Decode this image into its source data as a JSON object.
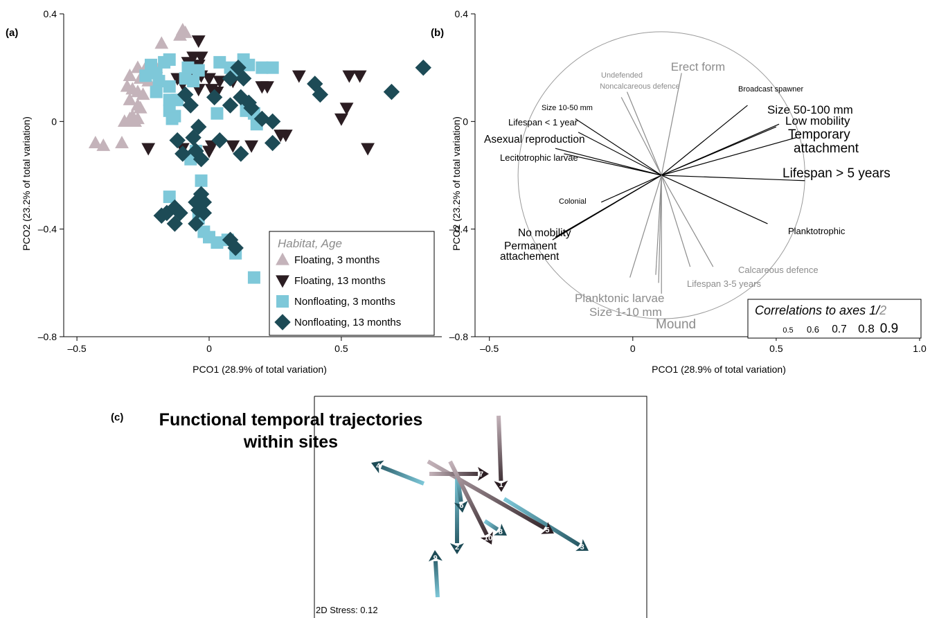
{
  "chart_data": [
    {
      "panel": "(a)",
      "type": "scatter",
      "xlabel": "PCO1 (28.9% of total variation)",
      "ylabel": "PCO2 (23.2% of total variation)",
      "xlim": [
        -0.55,
        0.88
      ],
      "ylim": [
        -0.8,
        0.4
      ],
      "xticks": [
        -0.5,
        0,
        0.5
      ],
      "xtick_labels": [
        "–0.5",
        "0",
        "0.5"
      ],
      "yticks": [
        0.4,
        0,
        -0.4,
        -0.8
      ],
      "ytick_labels": [
        "0.4",
        "0",
        "–0.4",
        "–0.8"
      ],
      "legend": {
        "title": "Habitat, Age",
        "position": "bottom-right",
        "entries": [
          "Floating, 3 months",
          "Floating, 13 months",
          "Nonfloating, 3 months",
          "Nonfloating, 13 months"
        ]
      },
      "series": [
        {
          "name": "Floating, 3 months",
          "marker": "triangle-up",
          "color": "#c4b3ba",
          "points": [
            [
              -0.1,
              0.34
            ],
            [
              -0.09,
              0.33
            ],
            [
              -0.11,
              0.32
            ],
            [
              -0.18,
              0.29
            ],
            [
              -0.27,
              0.2
            ],
            [
              -0.24,
              0.2
            ],
            [
              -0.2,
              0.2
            ],
            [
              -0.3,
              0.17
            ],
            [
              -0.26,
              0.16
            ],
            [
              -0.23,
              0.15
            ],
            [
              -0.31,
              0.13
            ],
            [
              -0.29,
              0.12
            ],
            [
              -0.27,
              0.11
            ],
            [
              -0.25,
              0.1
            ],
            [
              -0.3,
              0.08
            ],
            [
              -0.27,
              0.06
            ],
            [
              -0.26,
              0.05
            ],
            [
              -0.29,
              0.02
            ],
            [
              -0.27,
              0.01
            ],
            [
              -0.3,
              0.01
            ],
            [
              -0.32,
              0.0
            ],
            [
              -0.28,
              0.0
            ],
            [
              -0.43,
              -0.08
            ],
            [
              -0.4,
              -0.09
            ],
            [
              -0.33,
              -0.08
            ]
          ]
        },
        {
          "name": "Floating, 13 months",
          "marker": "triangle-down",
          "color": "#2b1d22",
          "points": [
            [
              -0.04,
              0.3
            ],
            [
              -0.06,
              0.24
            ],
            [
              -0.03,
              0.24
            ],
            [
              -0.08,
              0.22
            ],
            [
              -0.04,
              0.21
            ],
            [
              -0.12,
              0.16
            ],
            [
              -0.06,
              0.17
            ],
            [
              -0.1,
              0.14
            ],
            [
              -0.03,
              0.17
            ],
            [
              0.0,
              0.16
            ],
            [
              0.04,
              0.15
            ],
            [
              -0.04,
              0.12
            ],
            [
              0.01,
              0.12
            ],
            [
              0.03,
              0.11
            ],
            [
              0.09,
              0.15
            ],
            [
              0.2,
              0.13
            ],
            [
              0.22,
              0.13
            ],
            [
              0.34,
              0.17
            ],
            [
              0.53,
              0.17
            ],
            [
              0.57,
              0.17
            ],
            [
              0.52,
              0.05
            ],
            [
              0.5,
              0.01
            ],
            [
              0.6,
              -0.1
            ],
            [
              -0.23,
              -0.1
            ],
            [
              -0.1,
              -0.1
            ],
            [
              0.0,
              -0.11
            ],
            [
              0.01,
              -0.09
            ],
            [
              0.09,
              -0.09
            ],
            [
              0.16,
              -0.09
            ],
            [
              0.27,
              -0.05
            ],
            [
              0.29,
              -0.05
            ]
          ]
        },
        {
          "name": "Nonfloating, 3 months",
          "marker": "square",
          "color": "#7ec8d9",
          "points": [
            [
              -0.17,
              0.22
            ],
            [
              -0.15,
              0.23
            ],
            [
              -0.22,
              0.21
            ],
            [
              -0.2,
              0.18
            ],
            [
              -0.24,
              0.17
            ],
            [
              -0.19,
              0.15
            ],
            [
              -0.15,
              0.13
            ],
            [
              -0.2,
              0.11
            ],
            [
              -0.15,
              0.08
            ],
            [
              -0.12,
              0.08
            ],
            [
              -0.15,
              0.04
            ],
            [
              -0.13,
              0.02
            ],
            [
              -0.14,
              0.01
            ],
            [
              -0.09,
              0.16
            ],
            [
              -0.06,
              0.15
            ],
            [
              -0.08,
              0.2
            ],
            [
              -0.04,
              0.19
            ],
            [
              0.04,
              0.22
            ],
            [
              0.08,
              0.2
            ],
            [
              0.1,
              0.19
            ],
            [
              0.13,
              0.23
            ],
            [
              0.15,
              0.21
            ],
            [
              0.2,
              0.2
            ],
            [
              0.24,
              0.2
            ],
            [
              0.14,
              0.04
            ],
            [
              0.17,
              0.03
            ],
            [
              0.18,
              -0.01
            ],
            [
              0.03,
              0.03
            ],
            [
              -0.07,
              -0.14
            ],
            [
              -0.05,
              -0.11
            ],
            [
              -0.03,
              -0.22
            ],
            [
              -0.15,
              -0.28
            ],
            [
              -0.04,
              -0.36
            ],
            [
              -0.02,
              -0.41
            ],
            [
              0.0,
              -0.43
            ],
            [
              0.03,
              -0.45
            ],
            [
              0.07,
              -0.44
            ],
            [
              0.1,
              -0.49
            ],
            [
              0.17,
              -0.58
            ]
          ]
        },
        {
          "name": "Nonfloating, 13 months",
          "marker": "diamond",
          "color": "#1d4b56",
          "points": [
            [
              0.81,
              0.2
            ],
            [
              0.69,
              0.11
            ],
            [
              0.4,
              0.14
            ],
            [
              0.42,
              0.1
            ],
            [
              0.11,
              0.2
            ],
            [
              0.08,
              0.16
            ],
            [
              0.13,
              0.16
            ],
            [
              0.02,
              0.09
            ],
            [
              -0.09,
              0.1
            ],
            [
              -0.07,
              0.06
            ],
            [
              0.12,
              0.09
            ],
            [
              0.15,
              0.07
            ],
            [
              0.08,
              0.06
            ],
            [
              0.16,
              0.05
            ],
            [
              0.2,
              0.01
            ],
            [
              0.24,
              0.0
            ],
            [
              -0.04,
              -0.02
            ],
            [
              -0.06,
              -0.06
            ],
            [
              -0.12,
              -0.07
            ],
            [
              -0.05,
              -0.11
            ],
            [
              -0.1,
              -0.12
            ],
            [
              -0.03,
              -0.14
            ],
            [
              0.04,
              -0.07
            ],
            [
              0.12,
              -0.12
            ],
            [
              0.24,
              -0.08
            ],
            [
              -0.03,
              -0.27
            ],
            [
              -0.05,
              -0.3
            ],
            [
              -0.02,
              -0.3
            ],
            [
              -0.04,
              -0.33
            ],
            [
              -0.02,
              -0.34
            ],
            [
              -0.16,
              -0.34
            ],
            [
              -0.13,
              -0.32
            ],
            [
              -0.18,
              -0.35
            ],
            [
              -0.11,
              -0.34
            ],
            [
              -0.13,
              -0.38
            ],
            [
              -0.05,
              -0.38
            ],
            [
              0.08,
              -0.44
            ],
            [
              0.1,
              -0.47
            ]
          ]
        }
      ]
    },
    {
      "panel": "(b)",
      "type": "biplot",
      "xlabel": "PCO1 (28.9% of total variation)",
      "ylabel": "PCO2 (23.2% of total variation)",
      "xlim": [
        -0.55,
        1.0
      ],
      "ylim": [
        -0.8,
        0.4
      ],
      "xticks": [
        -0.5,
        0,
        0.5,
        1.0
      ],
      "xtick_labels": [
        "–0.5",
        "0",
        "0.5",
        "1.0"
      ],
      "yticks": [
        0.4,
        0,
        -0.4,
        -0.8
      ],
      "ytick_labels": [
        "0.4",
        "0",
        "–0.4",
        "–0.8"
      ],
      "circle_center": [
        0.1,
        -0.2
      ],
      "circle_radius": 0.5,
      "vectors": [
        {
          "label": "Erect form",
          "end": [
            0.17,
            0.18
          ],
          "color": "#8c8c8c",
          "size": "0.8"
        },
        {
          "label": "Undefended",
          "end": [
            -0.02,
            0.11
          ],
          "color": "#8c8c8c",
          "size": "0.5"
        },
        {
          "label": "Noncalcareous defence",
          "end": [
            -0.04,
            0.09
          ],
          "color": "#8c8c8c",
          "size": "0.5"
        },
        {
          "label": "Broadcast spawner",
          "end": [
            0.4,
            0.06
          ],
          "color": "#000000",
          "size": "0.5"
        },
        {
          "label": "Size 10-50 mm",
          "end": [
            -0.2,
            0.01
          ],
          "color": "#000000",
          "size": "0.5"
        },
        {
          "label": "Size 50-100 mm",
          "end": [
            0.5,
            -0.02
          ],
          "color": "#000000",
          "size": "0.8"
        },
        {
          "label": "Low mobility",
          "end": [
            0.51,
            -0.01
          ],
          "color": "#000000",
          "size": "0.8"
        },
        {
          "label": "Lifespan < 1 year",
          "end": [
            -0.19,
            -0.04
          ],
          "color": "#000000",
          "size": "0.6"
        },
        {
          "label": "Temporary attachment",
          "end": [
            0.57,
            -0.06
          ],
          "color": "#000000",
          "size": "0.9"
        },
        {
          "label": "Asexual reproduction",
          "end": [
            -0.27,
            -0.1
          ],
          "color": "#000000",
          "size": "0.7"
        },
        {
          "label": "Lecitotrophic larvae",
          "end": [
            -0.24,
            -0.12
          ],
          "color": "#000000",
          "size": "0.6"
        },
        {
          "label": "Lifespan > 5 years",
          "end": [
            0.6,
            -0.22
          ],
          "color": "#000000",
          "size": "0.9"
        },
        {
          "label": "Colonial",
          "end": [
            -0.11,
            -0.3
          ],
          "color": "#000000",
          "size": "0.5"
        },
        {
          "label": "No mobility",
          "end": [
            -0.27,
            -0.43
          ],
          "color": "#000000",
          "size": "0.7"
        },
        {
          "label": "Permanent attachement",
          "end": [
            -0.28,
            -0.44
          ],
          "color": "#000000",
          "size": "0.7"
        },
        {
          "label": "Planktotrophic",
          "end": [
            0.47,
            -0.38
          ],
          "color": "#000000",
          "size": "0.6"
        },
        {
          "label": "Calcareous defence",
          "end": [
            0.28,
            -0.54
          ],
          "color": "#8c8c8c",
          "size": "0.6"
        },
        {
          "label": "Lifespan 3-5 years",
          "end": [
            0.2,
            -0.54
          ],
          "color": "#8c8c8c",
          "size": "0.6"
        },
        {
          "label": "Planktonic larvae",
          "end": [
            0.08,
            -0.57
          ],
          "color": "#8c8c8c",
          "size": "0.8"
        },
        {
          "label": "Size 1-10 mm",
          "end": [
            0.09,
            -0.6
          ],
          "color": "#8c8c8c",
          "size": "0.8"
        },
        {
          "label": "Mound",
          "end": [
            0.1,
            -0.64
          ],
          "color": "#8c8c8c",
          "size": "0.9"
        },
        {
          "label": "",
          "end": [
            -0.01,
            -0.58
          ],
          "color": "#8c8c8c",
          "size": "0.6"
        }
      ],
      "legend": {
        "title_black": "Correlations to axes 1/",
        "title_grey": "2",
        "scale": [
          "0.5",
          "0.6",
          "0.7",
          "0.8",
          "0.9"
        ]
      }
    },
    {
      "panel": "(c)",
      "type": "trajectory",
      "title": "Functional temporal trajectories within sites",
      "annotation": "2D Stress: 0.12",
      "colors": {
        "floating_start": "#c4b3ba",
        "floating_end": "#2b1d22",
        "nonfloating_start": "#7ec8d9",
        "nonfloating_end": "#1d4b56"
      },
      "trajectories": [
        {
          "label": "1",
          "points": [
            [
              720,
              600
            ],
            [
              724,
              708
            ],
            [
              724,
              710
            ]
          ],
          "kind": "floating"
        },
        {
          "label": "2",
          "points": [
            [
              660,
              690
            ],
            [
              660,
              800
            ]
          ],
          "kind": "nonfloating"
        },
        {
          "label": "3",
          "points": [
            [
              728,
              720
            ],
            [
              850,
              795
            ]
          ],
          "kind": "nonfloating"
        },
        {
          "label": "4",
          "points": [
            [
              612,
              698
            ],
            [
              536,
              668
            ]
          ],
          "kind": "nonfloating"
        },
        {
          "label": "5",
          "points": [
            [
              618,
              666
            ],
            [
              800,
              770
            ]
          ],
          "kind": "floating"
        },
        {
          "label": "6",
          "points": [
            [
              660,
              684
            ],
            [
              668,
              740
            ]
          ],
          "kind": "nonfloating"
        },
        {
          "label": "7",
          "points": [
            [
              620,
              684
            ],
            [
              706,
              684
            ]
          ],
          "kind": "floating"
        },
        {
          "label": "8",
          "points": [
            [
              700,
              752
            ],
            [
              732,
              773
            ]
          ],
          "kind": "nonfloating"
        },
        {
          "label": "9",
          "points": [
            [
              632,
              862
            ],
            [
              628,
              794
            ]
          ],
          "kind": "nonfloating"
        },
        {
          "label": "10",
          "points": [
            [
              650,
              666
            ],
            [
              710,
              786
            ]
          ],
          "kind": "floating"
        }
      ]
    }
  ]
}
